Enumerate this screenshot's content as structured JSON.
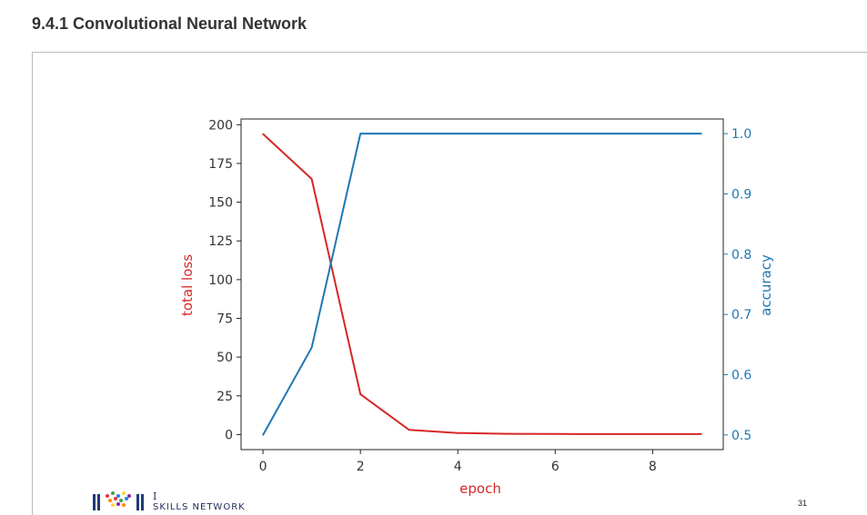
{
  "section": {
    "title": "9.4.1 Convolutional Neural Network"
  },
  "chart_data": {
    "type": "line",
    "xlabel": "epoch",
    "ylabel_left": "total loss",
    "ylabel_right": "accuracy",
    "x": [
      0,
      1,
      2,
      3,
      4,
      5,
      6,
      7,
      8,
      9
    ],
    "series": [
      {
        "axis": "left",
        "color": "#d62728",
        "values": [
          194,
          165,
          26,
          3,
          1,
          0.5,
          0.4,
          0.3,
          0.3,
          0.3
        ]
      },
      {
        "axis": "right",
        "color": "#1f77b4",
        "values": [
          0.5,
          0.645,
          1.0,
          1.0,
          1.0,
          1.0,
          1.0,
          1.0,
          1.0,
          1.0
        ]
      }
    ],
    "x_ticks": [
      "0",
      "2",
      "4",
      "6",
      "8"
    ],
    "x_tick_values": [
      0,
      2,
      4,
      6,
      8
    ],
    "y_left_ticks": [
      "0",
      "25",
      "50",
      "75",
      "100",
      "125",
      "150",
      "175",
      "200"
    ],
    "y_left_tick_values": [
      0,
      25,
      50,
      75,
      100,
      125,
      150,
      175,
      200
    ],
    "y_right_ticks": [
      "0.5",
      "0.6",
      "0.7",
      "0.8",
      "0.9",
      "1.0"
    ],
    "y_right_tick_values": [
      0.5,
      0.6,
      0.7,
      0.8,
      0.9,
      1.0
    ],
    "xlim": [
      -0.45,
      9.45
    ],
    "ylim_left": [
      -9.7,
      203.7
    ],
    "ylim_right": [
      0.4757,
      1.0243
    ],
    "grid": false,
    "left_label_color": "#d62728",
    "right_label_color": "#1f77b4"
  },
  "footer": {
    "logo_line_1": "I",
    "logo_line_2": "SKILLS NETWORK",
    "page_number": "31"
  }
}
